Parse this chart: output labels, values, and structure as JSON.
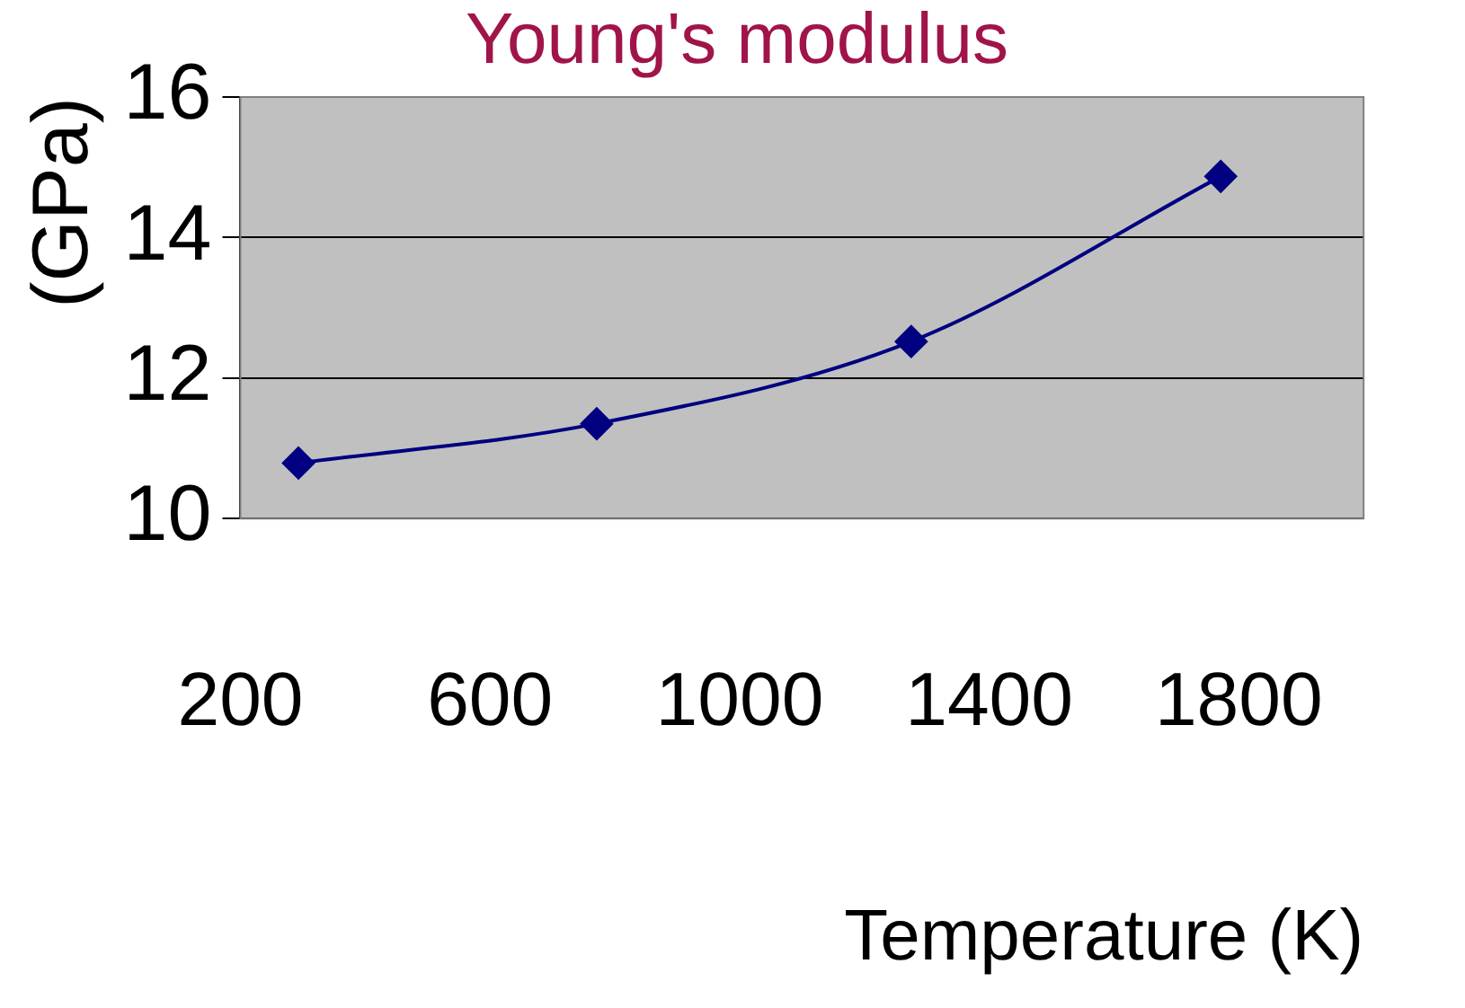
{
  "chart_data": {
    "type": "line",
    "title": "Young's modulus",
    "xlabel": "Temperature (K)",
    "ylabel": "(GPa)",
    "x": [
      293,
      771,
      1275,
      1771
    ],
    "series": [
      {
        "color": "#000080",
        "values": [
          10.79,
          11.35,
          12.52,
          14.87
        ]
      }
    ],
    "xlim": [
      200,
      2000
    ],
    "xticks": [
      200,
      600,
      1000,
      1400,
      1800
    ],
    "ylim": [
      10,
      16
    ],
    "yticks": [
      10,
      12,
      14,
      16
    ],
    "grid": "y",
    "legend": false,
    "marker": "diamond",
    "line_style": "solid"
  }
}
